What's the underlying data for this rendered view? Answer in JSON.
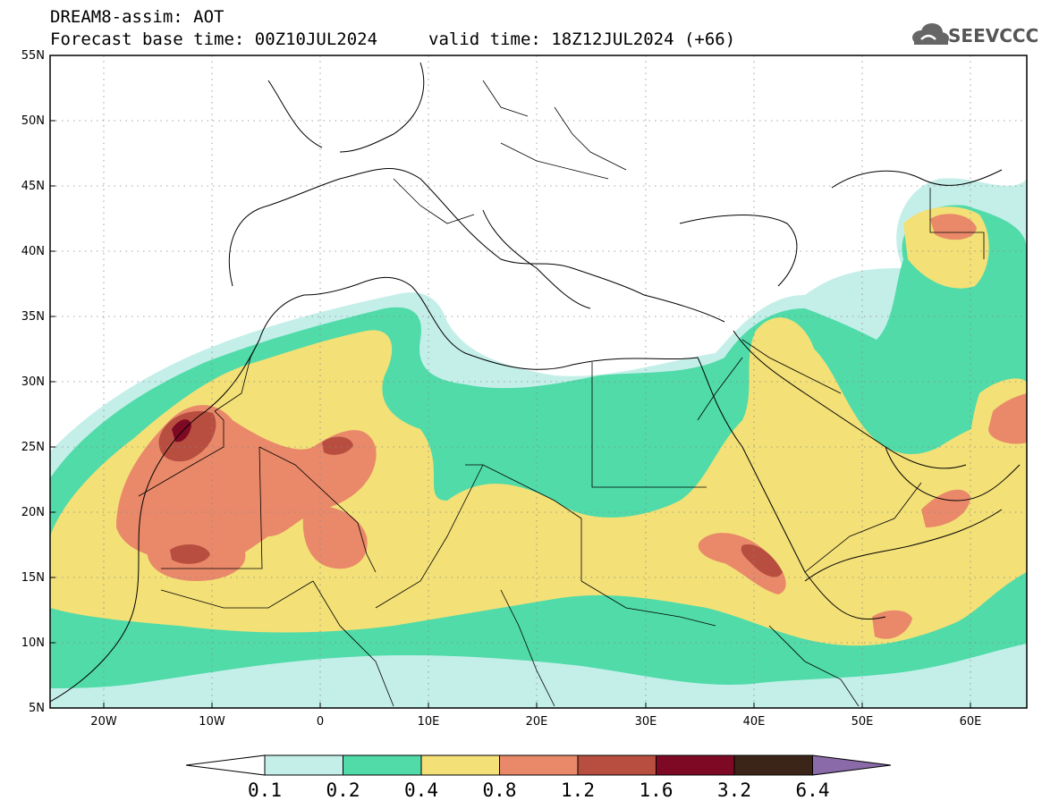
{
  "header": {
    "title": "DREAM8-assim: AOT",
    "base_time": "Forecast base time: 00Z10JUL2024",
    "valid_time": "valid time: 18Z12JUL2024 (+66)"
  },
  "logo": {
    "text": "SEEVCCC",
    "icon": "cloud-icon"
  },
  "map": {
    "variable": "AOT",
    "lon_range": [
      -25,
      65
    ],
    "lat_range": [
      5,
      55
    ],
    "lat_labels": [
      "55N",
      "50N",
      "45N",
      "40N",
      "35N",
      "30N",
      "25N",
      "20N",
      "15N",
      "10N",
      "5N"
    ],
    "lon_labels": [
      "20W",
      "10W",
      "0",
      "10E",
      "20E",
      "30E",
      "40E",
      "50E",
      "60E"
    ],
    "colors": {
      "c1": "#c4efe9",
      "c2": "#50dba9",
      "c3": "#f3e077",
      "c4": "#e9896a",
      "c5": "#b84e3f",
      "c6": "#7e0924",
      "c7": "#3b2418",
      "c8": "#8a6aa8"
    }
  },
  "colorbar": {
    "labels": [
      "0.1",
      "0.2",
      "0.4",
      "0.8",
      "1.2",
      "1.6",
      "3.2",
      "6.4"
    ],
    "colors": [
      "#c4efe9",
      "#50dba9",
      "#f3e077",
      "#e9896a",
      "#b84e3f",
      "#7e0924",
      "#3b2418"
    ],
    "over_color": "#8a6aa8",
    "under_color": "#ffffff"
  }
}
